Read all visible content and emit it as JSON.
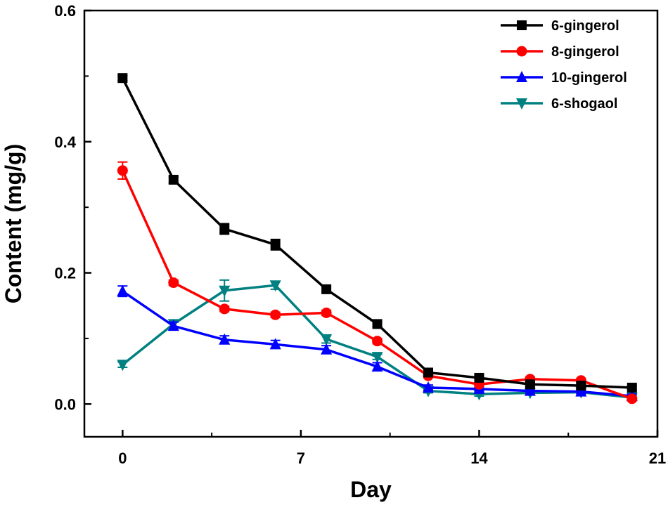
{
  "chart_data": {
    "type": "line",
    "title": "",
    "xlabel": "Day",
    "ylabel": "Content (mg/g)",
    "xlim": [
      -1.5,
      21
    ],
    "ylim": [
      -0.05,
      0.6
    ],
    "xticks": [
      0,
      7,
      14,
      21
    ],
    "xtick_labels": [
      "0",
      "7",
      "14",
      "21"
    ],
    "yticks": [
      0.0,
      0.2,
      0.4,
      0.6
    ],
    "ytick_labels": [
      "0.0",
      "0.2",
      "0.4",
      "0.6"
    ],
    "x": [
      0,
      2,
      4,
      6,
      8,
      10,
      12,
      14,
      16,
      18,
      20
    ],
    "series": [
      {
        "name": "6-gingerol",
        "color": "#000000",
        "marker": "square",
        "values": [
          0.497,
          0.342,
          0.267,
          0.243,
          0.175,
          0.122,
          0.048,
          0.04,
          0.03,
          0.028,
          0.025
        ],
        "errors": [
          0.004,
          0.005,
          0.008,
          0.008,
          0.004,
          0.004,
          0.003,
          0.003,
          0.003,
          0.003,
          0.003
        ]
      },
      {
        "name": "8-gingerol",
        "color": "#ff0000",
        "marker": "circle",
        "values": [
          0.356,
          0.185,
          0.145,
          0.136,
          0.139,
          0.096,
          0.043,
          0.03,
          0.038,
          0.036,
          0.008
        ],
        "errors": [
          0.013,
          0.004,
          0.004,
          0.004,
          0.004,
          0.004,
          0.003,
          0.003,
          0.003,
          0.003,
          0.003
        ]
      },
      {
        "name": "10-gingerol",
        "color": "#0000ff",
        "marker": "triangle-up",
        "values": [
          0.172,
          0.119,
          0.098,
          0.091,
          0.083,
          0.057,
          0.025,
          0.023,
          0.02,
          0.019,
          0.012
        ],
        "errors": [
          0.008,
          0.006,
          0.006,
          0.006,
          0.006,
          0.006,
          0.004,
          0.003,
          0.003,
          0.003,
          0.003
        ]
      },
      {
        "name": "6-shogaol",
        "color": "#008080",
        "marker": "triangle-down",
        "values": [
          0.06,
          0.122,
          0.173,
          0.181,
          0.099,
          0.072,
          0.02,
          0.015,
          0.017,
          0.018,
          0.01
        ],
        "errors": [
          0.004,
          0.004,
          0.016,
          0.006,
          0.006,
          0.004,
          0.003,
          0.003,
          0.003,
          0.003,
          0.003
        ]
      }
    ],
    "legend_position": "top-right"
  }
}
